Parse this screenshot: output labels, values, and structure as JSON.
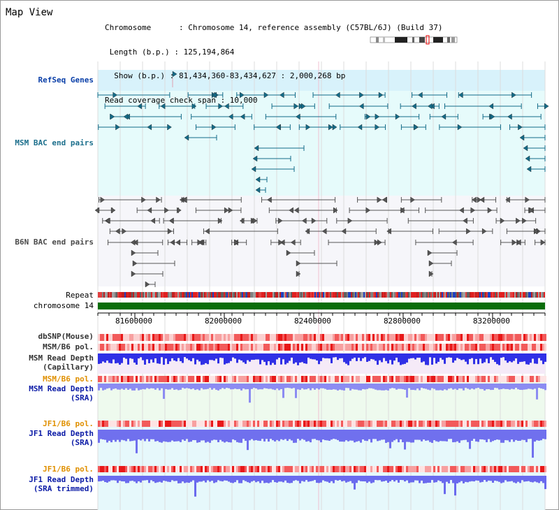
{
  "header": {
    "title": "Map View",
    "info_lines": [
      "Chromosome      : Chromosome 14, reference assembly (C57BL/6J) (Build 37)",
      " Length (b.p.) : 125,194,864",
      "  Show (b.p.) : 81,434,360-83,434,627 : 2,000,268 bp",
      "Read coverage check span : 10,000"
    ]
  },
  "tracks": {
    "refseq": "RefSeq Genes",
    "msm_bac": "MSM BAC end pairs",
    "b6n_bac": "B6N BAC end pairs",
    "repeat": "Repeat",
    "chromosome": "chromosome 14",
    "dbsnp": "dbSNP(Mouse)",
    "msm_b6_pol_1": "MSM/B6 pol.",
    "msm_depth_cap_1": "MSM Read Depth",
    "msm_depth_cap_2": "(Capillary)",
    "msm_b6_pol_2": "MSM/B6 pol.",
    "msm_depth_sra_1": "MSM Read Depth",
    "msm_depth_sra_2": "(SRA)",
    "jf1_b6_pol_1": "JF1/B6 pol.",
    "jf1_depth_sra_1": "JF1 Read Depth",
    "jf1_depth_sra_2": "(SRA)",
    "jf1_b6_pol_2": "JF1/B6 pol.",
    "jf1_depth_trim_1": "JF1 Read Depth",
    "jf1_depth_trim_2": "(SRA trimmed)"
  },
  "axis": {
    "ticks": [
      {
        "pos": 81600000,
        "label": "81600000"
      },
      {
        "pos": 82000000,
        "label": "82000000"
      },
      {
        "pos": 82400000,
        "label": "82400000"
      },
      {
        "pos": 82800000,
        "label": "82800000"
      },
      {
        "pos": 83200000,
        "label": "83200000"
      }
    ],
    "start": 81434360,
    "end": 83434627
  },
  "colors": {
    "refseq_bg": "#d8f2fb",
    "msm_bg": "#e6fbfb",
    "b6n_bg": "#f6f6fa",
    "gene": "#136b88",
    "b6n": "#555555",
    "chromosome": "#0a6e0a",
    "depth": "#3a3ae8",
    "depth_light": "#8c8cf0",
    "snp": "#f04040",
    "pol_pale": "#fde8e8"
  }
}
